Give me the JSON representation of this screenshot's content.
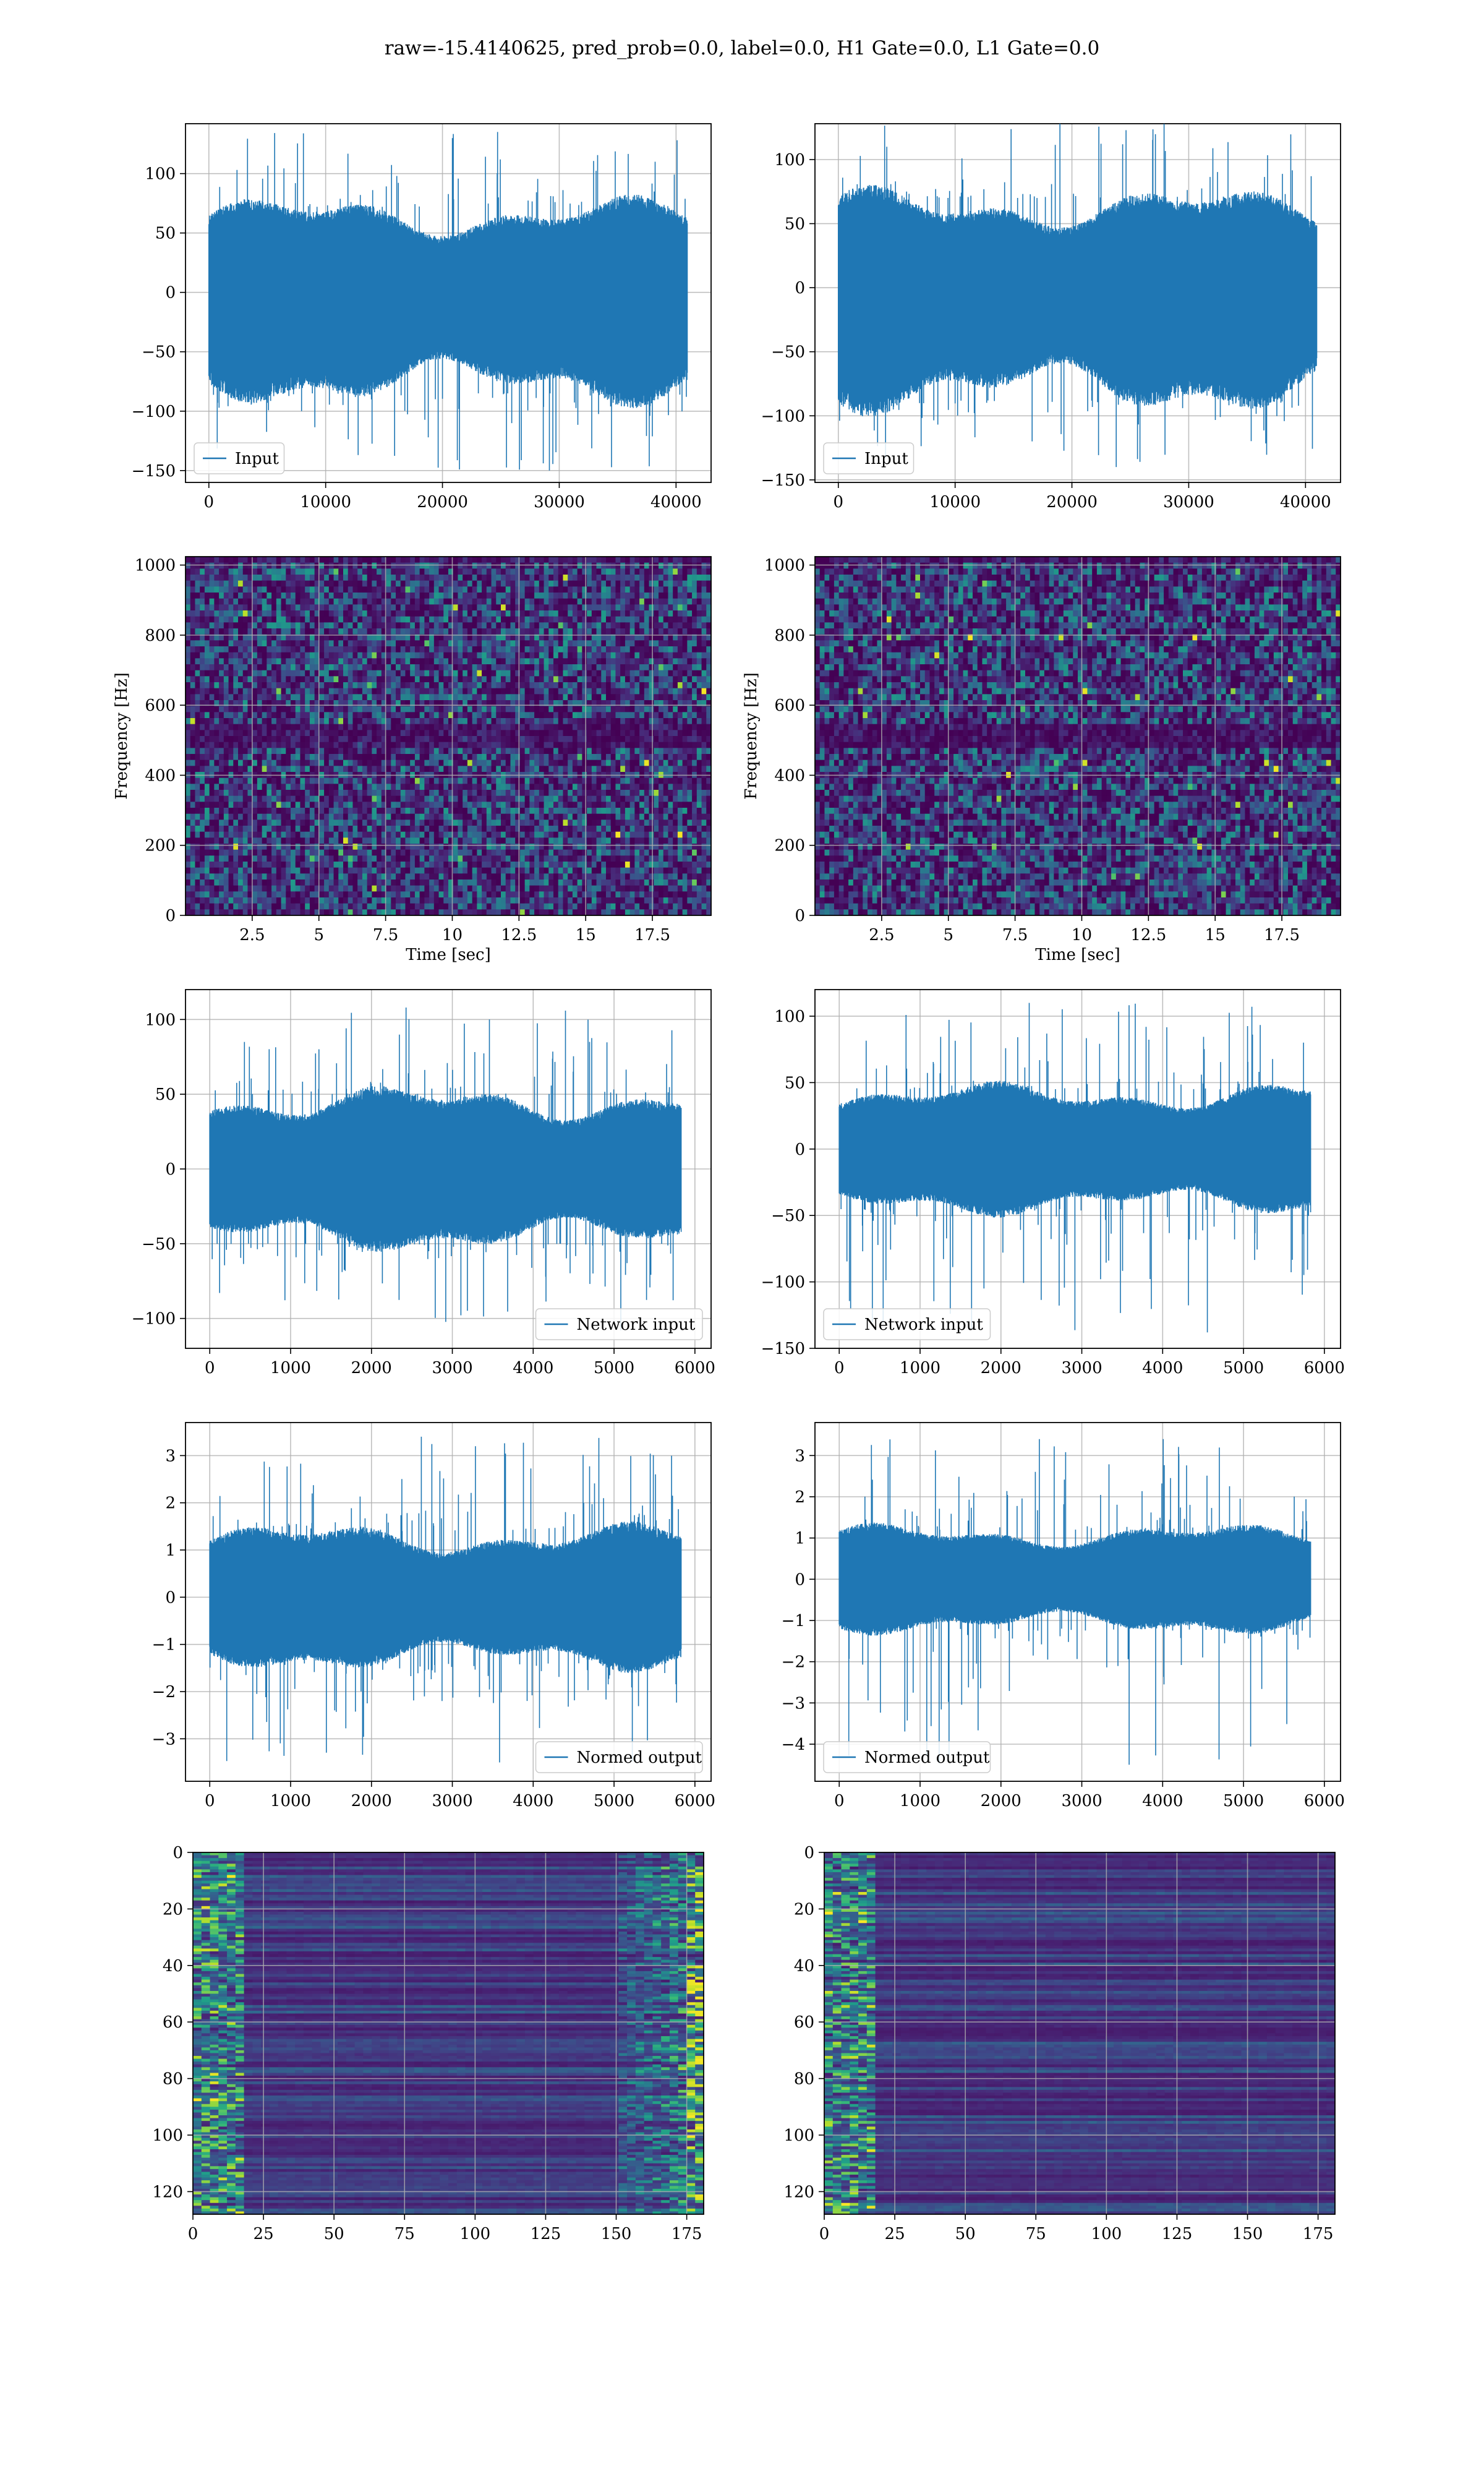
{
  "figure": {
    "title": "raw=-15.4140625, pred_prob=0.0, label=0.0, H1 Gate=0.0, L1 Gate=0.0",
    "colors": {
      "series": "#1f77b4",
      "grid": "#b0b0b0",
      "axes": "#000000"
    }
  },
  "chart_data": [
    {
      "id": "h1-input",
      "type": "line",
      "title": "",
      "xlabel": "",
      "ylabel": "",
      "legend": {
        "label": "Input",
        "loc": "lower left"
      },
      "xlim": [
        -2000,
        43000
      ],
      "ylim": [
        -160,
        142
      ],
      "xticks": [
        0,
        10000,
        20000,
        30000,
        40000
      ],
      "yticks": [
        -150,
        -100,
        -50,
        0,
        50,
        100
      ],
      "grid": true,
      "series": [
        {
          "n": 40960,
          "x_range": [
            0,
            40960
          ],
          "body_amplitude": [
            -85,
            72
          ],
          "spike_range": [
            -150,
            135
          ]
        }
      ]
    },
    {
      "id": "l1-input",
      "type": "line",
      "title": "",
      "xlabel": "",
      "ylabel": "",
      "legend": {
        "label": "Input",
        "loc": "lower left"
      },
      "xlim": [
        -2000,
        43000
      ],
      "ylim": [
        -152,
        128
      ],
      "xticks": [
        0,
        10000,
        20000,
        30000,
        40000
      ],
      "yticks": [
        -150,
        -100,
        -50,
        0,
        50,
        100
      ],
      "grid": true,
      "series": [
        {
          "n": 40960,
          "x_range": [
            0,
            40960
          ],
          "body_amplitude": [
            -88,
            70
          ],
          "spike_range": [
            -140,
            128
          ]
        }
      ]
    },
    {
      "id": "h1-spectrogram",
      "type": "heatmap",
      "title": "",
      "xlabel": "Time [sec]",
      "ylabel": "Frequency [Hz]",
      "xlim": [
        0,
        19.7
      ],
      "ylim": [
        0,
        1024
      ],
      "xticks": [
        2.5,
        5.0,
        7.5,
        10.0,
        12.5,
        15.0,
        17.5
      ],
      "yticks": [
        0,
        200,
        400,
        600,
        800,
        1000
      ],
      "colormap": "viridis",
      "grid": true,
      "dark_band_hz": [
        500,
        520
      ]
    },
    {
      "id": "l1-spectrogram",
      "type": "heatmap",
      "title": "",
      "xlabel": "Time [sec]",
      "ylabel": "Frequency [Hz]",
      "xlim": [
        0,
        19.7
      ],
      "ylim": [
        0,
        1024
      ],
      "xticks": [
        2.5,
        5.0,
        7.5,
        10.0,
        12.5,
        15.0,
        17.5
      ],
      "yticks": [
        0,
        200,
        400,
        600,
        800,
        1000
      ],
      "colormap": "viridis",
      "grid": true,
      "dark_band_hz": [
        500,
        520
      ]
    },
    {
      "id": "h1-network-input",
      "type": "line",
      "title": "",
      "xlabel": "",
      "ylabel": "",
      "legend": {
        "label": "Network input",
        "loc": "lower right"
      },
      "xlim": [
        -300,
        6200
      ],
      "ylim": [
        -120,
        120
      ],
      "xticks": [
        0,
        1000,
        2000,
        3000,
        4000,
        5000,
        6000
      ],
      "yticks": [
        -100,
        -50,
        0,
        50,
        100
      ],
      "grid": true,
      "series": [
        {
          "n": 5830,
          "x_range": [
            0,
            5830
          ],
          "body_amplitude": [
            -50,
            50
          ],
          "spike_range": [
            -108,
            108
          ]
        }
      ]
    },
    {
      "id": "l1-network-input",
      "type": "line",
      "title": "",
      "xlabel": "",
      "ylabel": "",
      "legend": {
        "label": "Network input",
        "loc": "lower left"
      },
      "xlim": [
        -300,
        6200
      ],
      "ylim": [
        -150,
        120
      ],
      "xticks": [
        0,
        1000,
        2000,
        3000,
        4000,
        5000,
        6000
      ],
      "yticks": [
        -150,
        -100,
        -50,
        0,
        50,
        100
      ],
      "grid": true,
      "series": [
        {
          "n": 5830,
          "x_range": [
            0,
            5830
          ],
          "body_amplitude": [
            -45,
            45
          ],
          "spike_range": [
            -138,
            110
          ]
        }
      ]
    },
    {
      "id": "h1-normed-output",
      "type": "line",
      "title": "",
      "xlabel": "",
      "ylabel": "",
      "legend": {
        "label": "Normed output",
        "loc": "lower right"
      },
      "xlim": [
        -300,
        6200
      ],
      "ylim": [
        -3.9,
        3.7
      ],
      "xticks": [
        0,
        1000,
        2000,
        3000,
        4000,
        5000,
        6000
      ],
      "yticks": [
        -3,
        -2,
        -1,
        0,
        1,
        2,
        3
      ],
      "grid": true,
      "series": [
        {
          "n": 5830,
          "x_range": [
            0,
            5830
          ],
          "body_amplitude": [
            -1.4,
            1.4
          ],
          "spike_range": [
            -3.5,
            3.4
          ]
        }
      ]
    },
    {
      "id": "l1-normed-output",
      "type": "line",
      "title": "",
      "xlabel": "",
      "ylabel": "",
      "legend": {
        "label": "Normed output",
        "loc": "lower left"
      },
      "xlim": [
        -300,
        6200
      ],
      "ylim": [
        -4.9,
        3.8
      ],
      "xticks": [
        0,
        1000,
        2000,
        3000,
        4000,
        5000,
        6000
      ],
      "yticks": [
        -4,
        -3,
        -2,
        -1,
        0,
        1,
        2,
        3
      ],
      "grid": true,
      "series": [
        {
          "n": 5830,
          "x_range": [
            0,
            5830
          ],
          "body_amplitude": [
            -1.2,
            1.2
          ],
          "spike_range": [
            -4.5,
            3.4
          ]
        }
      ]
    },
    {
      "id": "h1-feature-map",
      "type": "heatmap",
      "title": "",
      "xlabel": "",
      "ylabel": "",
      "xlim": [
        0,
        181
      ],
      "ylim": [
        128,
        0
      ],
      "xticks": [
        0,
        25,
        50,
        75,
        100,
        125,
        150,
        175
      ],
      "yticks": [
        0,
        20,
        40,
        60,
        80,
        100,
        120
      ],
      "colormap": "viridis",
      "grid": true,
      "rows": 128,
      "cols": 181
    },
    {
      "id": "l1-feature-map",
      "type": "heatmap",
      "title": "",
      "xlabel": "",
      "ylabel": "",
      "xlim": [
        0,
        181
      ],
      "ylim": [
        128,
        0
      ],
      "xticks": [
        0,
        25,
        50,
        75,
        100,
        125,
        150,
        175
      ],
      "yticks": [
        0,
        20,
        40,
        60,
        80,
        100,
        120
      ],
      "colormap": "viridis",
      "grid": true,
      "rows": 128,
      "cols": 181
    }
  ]
}
